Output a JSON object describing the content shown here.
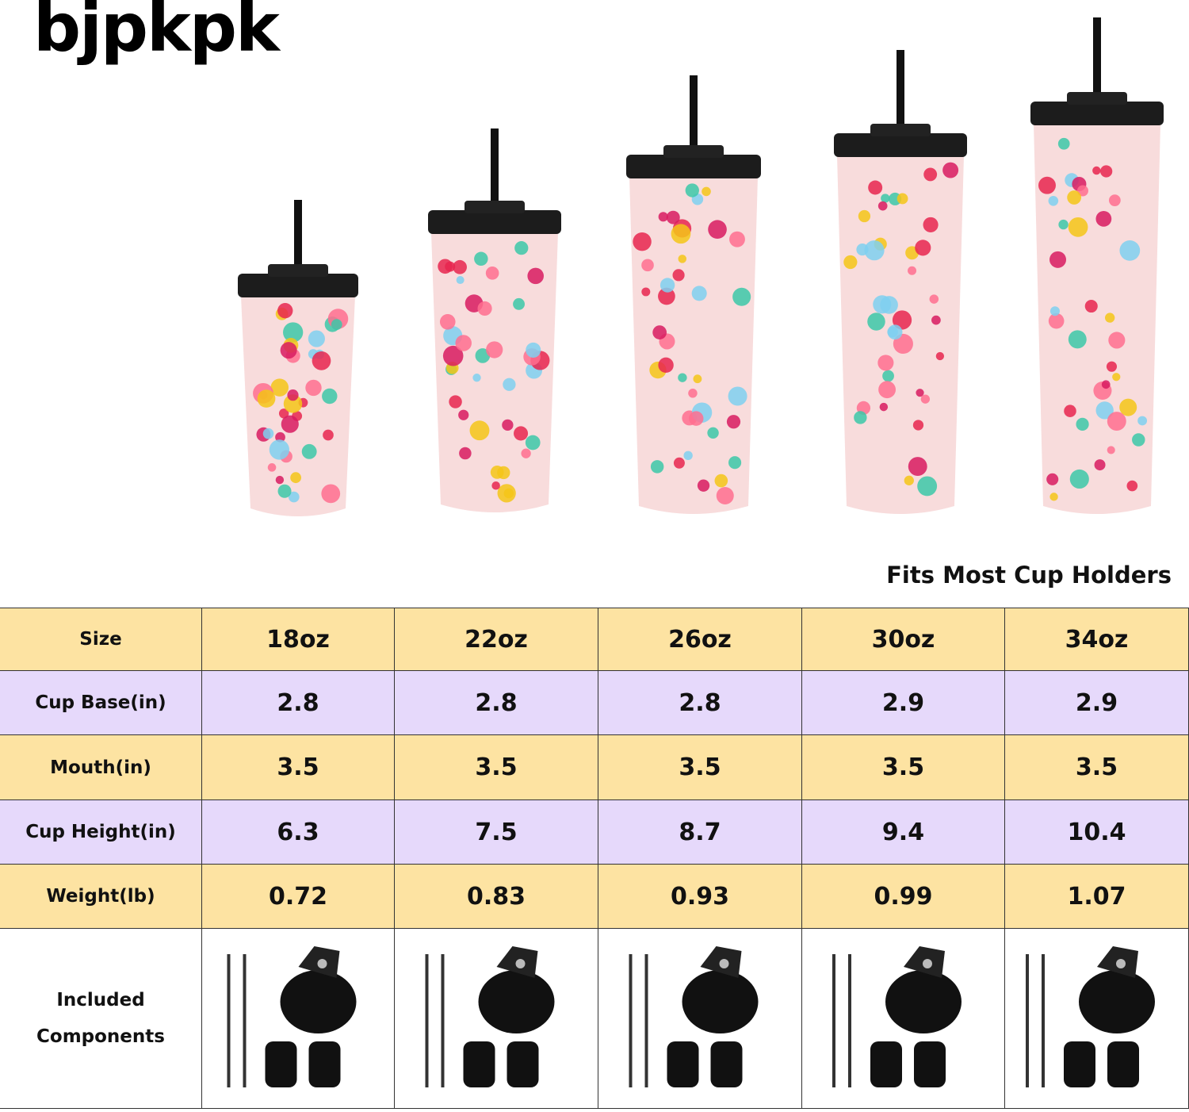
{
  "brand": "bjpkpk",
  "caption": "Fits Most Cup Holders",
  "table": {
    "rows": [
      [
        "Size",
        "18oz",
        "22oz",
        "26oz",
        "30oz",
        "34oz"
      ],
      [
        "Cup Base(in)",
        "2.8",
        "2.8",
        "2.8",
        "2.9",
        "2.9"
      ],
      [
        "Mouth(in)",
        "3.5",
        "3.5",
        "3.5",
        "3.5",
        "3.5"
      ],
      [
        "Cup Height(in)",
        "6.3",
        "7.5",
        "8.7",
        "9.4",
        "10.4"
      ],
      [
        "Weight(lb)",
        "0.72",
        "0.83",
        "0.93",
        "0.99",
        "1.07"
      ],
      [
        "Included Components"
      ]
    ]
  }
}
